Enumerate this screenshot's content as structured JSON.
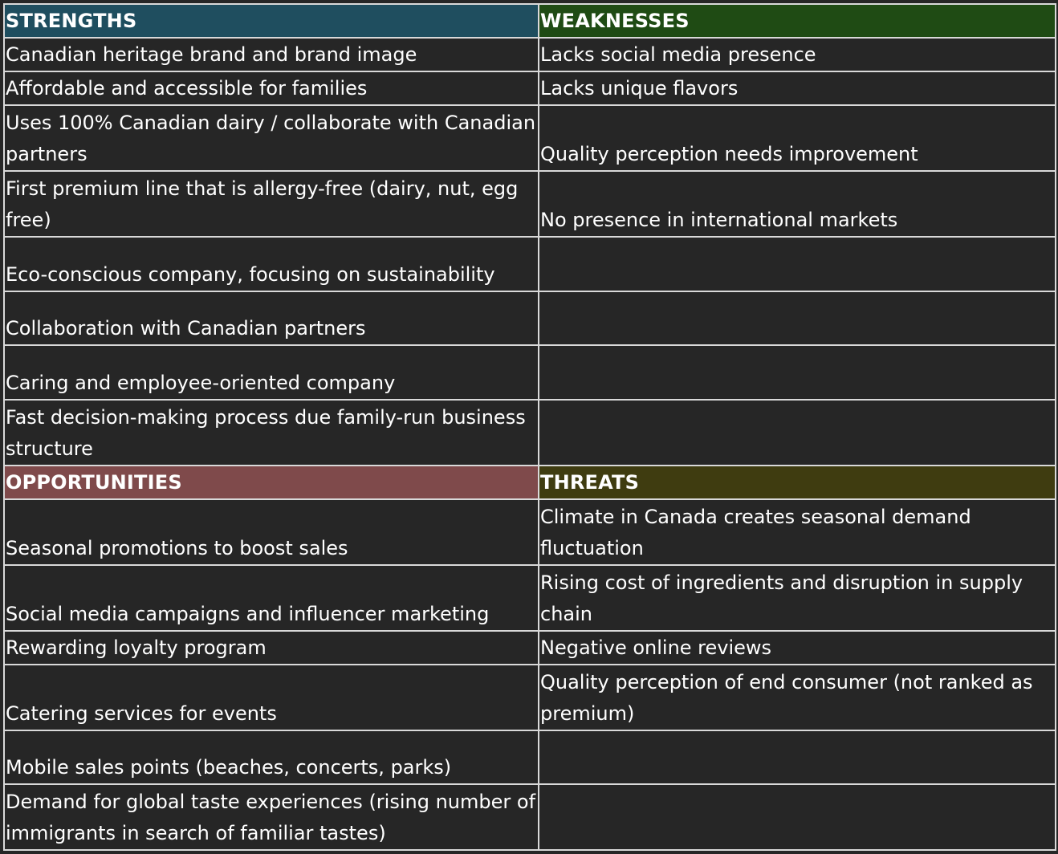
{
  "colors": {
    "strengths_header": "#1f4e5f",
    "weaknesses_header": "#1f4b14",
    "opportunities_header": "#7f4a4b",
    "threats_header": "#3f3c10",
    "cell_background": "#262626",
    "grid_lines": "#d9d9d9",
    "text": "#ffffff"
  },
  "strengths": {
    "header": "STRENGTHS",
    "items": [
      "Canadian heritage brand and brand image",
      "Affordable and accessible for families",
      "Uses 100% Canadian dairy / collaborate with Canadian partners",
      "First premium line that is allergy-free (dairy, nut, egg free)",
      "Eco-conscious company, focusing on sustainability",
      "Collaboration with Canadian partners",
      "Caring and employee-oriented company",
      "Fast decision-making process due family-run business structure"
    ]
  },
  "weaknesses": {
    "header": "WEAKNESSES",
    "items": [
      "Lacks social media presence",
      "Lacks unique flavors",
      "Quality perception needs improvement",
      "No presence in international markets",
      "",
      "",
      "",
      ""
    ]
  },
  "opportunities": {
    "header": "OPPORTUNITIES",
    "items": [
      "Seasonal promotions to boost sales",
      "Social media campaigns and influencer marketing",
      "Rewarding loyalty program",
      "Catering services for events",
      "Mobile sales points (beaches, concerts, parks)",
      "Demand for global taste experiences (rising number of immigrants in search of familiar tastes)"
    ]
  },
  "threats": {
    "header": "THREATS",
    "items": [
      "Climate in Canada creates seasonal demand fluctuation",
      "Rising cost of ingredients and disruption in supply chain",
      "Negative online reviews",
      "Quality perception of end consumer (not ranked as premium)",
      "",
      ""
    ]
  }
}
